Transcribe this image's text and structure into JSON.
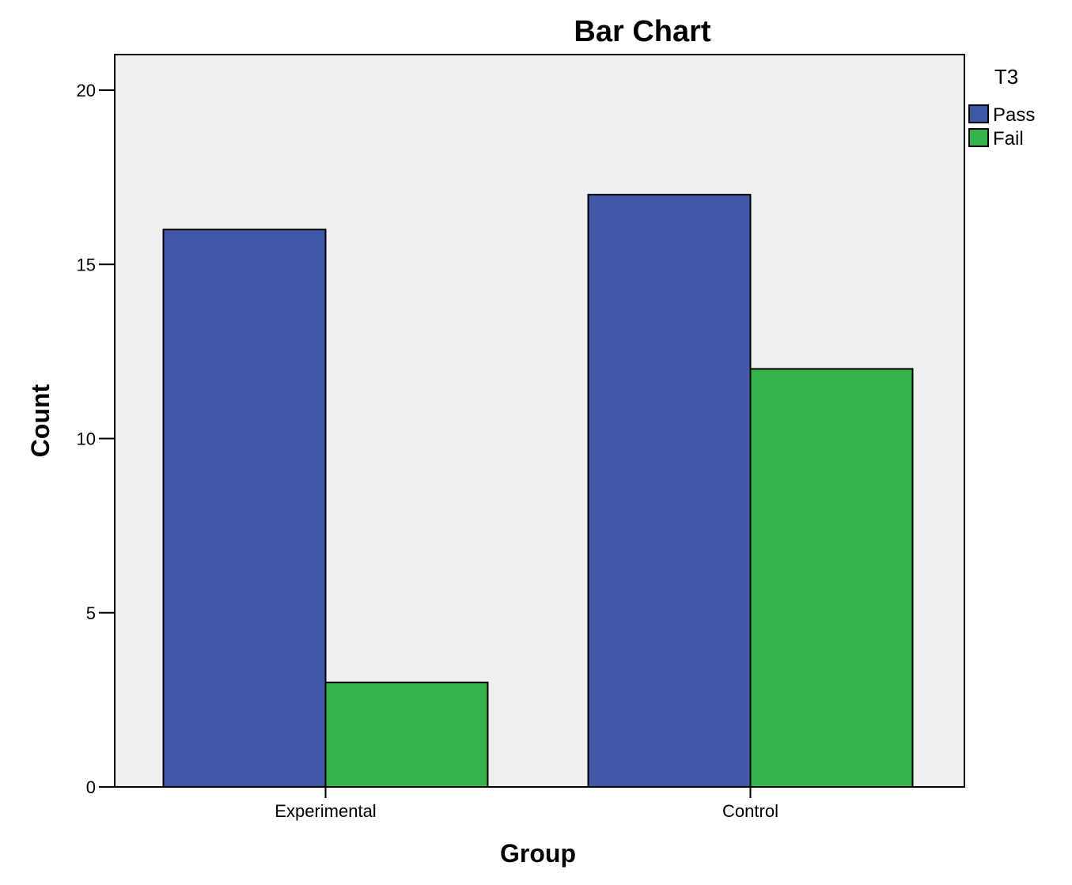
{
  "chart_data": {
    "type": "bar",
    "title": "Bar Chart",
    "xlabel": "Group",
    "ylabel": "Count",
    "categories": [
      "Experimental",
      "Control"
    ],
    "series": [
      {
        "name": "Pass",
        "values": [
          16,
          17
        ],
        "color": "#3f58aa"
      },
      {
        "name": "Fail",
        "values": [
          3,
          12
        ],
        "color": "#33b54b"
      }
    ],
    "ylim": [
      0,
      21
    ],
    "yticks": [
      0,
      5,
      10,
      15,
      20
    ],
    "grid": false,
    "legend": {
      "title": "T3",
      "position": "right-top"
    },
    "plot_background": "#f0f0f0"
  }
}
